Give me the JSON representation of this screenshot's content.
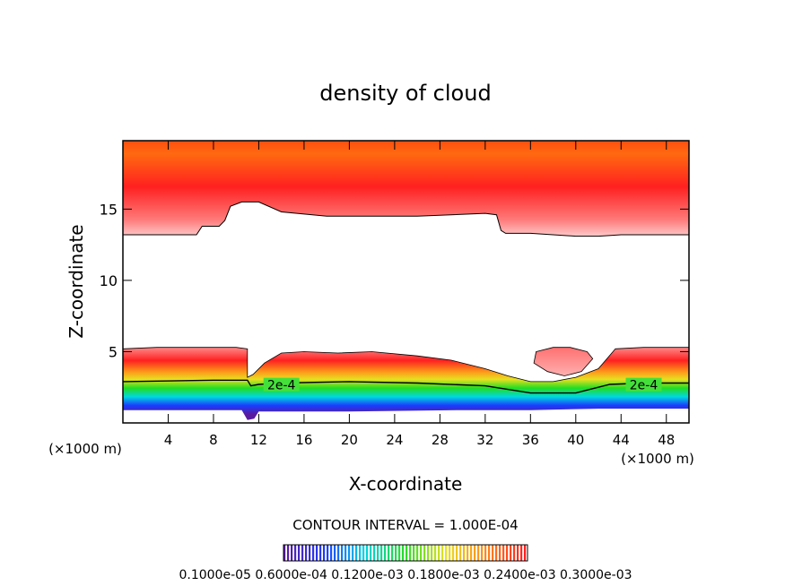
{
  "chart_data": {
    "type": "heatmap",
    "title": "density of cloud",
    "xlabel": "X-coordinate",
    "ylabel": "Z-coordinate",
    "x_unit_left": "(×1000 m)",
    "x_unit_right": "(×1000 m)",
    "xlim": [
      0,
      50
    ],
    "ylim": [
      0,
      19.8
    ],
    "x_ticks": [
      4,
      8,
      12,
      16,
      20,
      24,
      28,
      32,
      36,
      40,
      44,
      48
    ],
    "x_tick_labels": [
      "4",
      "8",
      "12",
      "16",
      "20",
      "24",
      "28",
      "32",
      "36",
      "40",
      "44",
      "48"
    ],
    "y_ticks": [
      5,
      10,
      15
    ],
    "y_tick_labels": [
      "5",
      "10",
      "15"
    ],
    "contour_interval_text": "CONTOUR INTERVAL = 1.000E-04",
    "contour_labels": [
      {
        "text": "2e-4",
        "x": 14.0,
        "z": 2.6
      },
      {
        "text": "2e-4",
        "x": 46.0,
        "z": 2.6
      }
    ],
    "colorbar_labels_text": "0.1000e-05 0.6000e-04 0.1200e-03 0.1800e-03 0.2400e-03 0.3000e-03",
    "colorbar_range": [
      1e-06,
      0.0003
    ],
    "colors": {
      "low": "#5a1aa0",
      "blue": "#1a3cff",
      "cyan": "#00d8e0",
      "green": "#22dd22",
      "yellow": "#e8e020",
      "orange": "#ff8c1a",
      "red": "#ff2020",
      "pink": "#ff8c8c"
    },
    "upper_layer": {
      "description_values": "density increases toward top (~3e-4 near z=19) and decreases to ~1e-6 at lower boundary",
      "lower_boundary": [
        [
          0,
          13.2
        ],
        [
          5,
          13.2
        ],
        [
          6.5,
          13.2
        ],
        [
          7,
          13.8
        ],
        [
          8.5,
          13.8
        ],
        [
          9,
          14.2
        ],
        [
          9.5,
          15.2
        ],
        [
          10.5,
          15.5
        ],
        [
          12,
          15.5
        ],
        [
          14,
          14.8
        ],
        [
          18,
          14.5
        ],
        [
          26,
          14.5
        ],
        [
          32,
          14.7
        ],
        [
          33,
          14.6
        ],
        [
          33.4,
          13.5
        ],
        [
          33.8,
          13.3
        ],
        [
          36,
          13.3
        ],
        [
          40,
          13.1
        ],
        [
          42,
          13.1
        ],
        [
          44,
          13.2
        ],
        [
          50,
          13.2
        ]
      ]
    },
    "lower_layer": {
      "upper_boundary": [
        [
          0,
          5.2
        ],
        [
          3,
          5.3
        ],
        [
          7,
          5.3
        ],
        [
          10,
          5.3
        ],
        [
          11,
          5.2
        ],
        [
          11,
          3.2
        ],
        [
          11.5,
          3.4
        ],
        [
          12.5,
          4.2
        ],
        [
          14,
          4.9
        ],
        [
          16,
          5.0
        ],
        [
          19,
          4.9
        ],
        [
          22,
          5.0
        ],
        [
          26,
          4.7
        ],
        [
          29,
          4.4
        ],
        [
          32,
          3.8
        ],
        [
          34,
          3.3
        ],
        [
          36,
          2.9
        ],
        [
          38,
          2.9
        ],
        [
          40,
          3.2
        ],
        [
          42,
          3.8
        ],
        [
          43.5,
          5.2
        ],
        [
          46,
          5.3
        ],
        [
          50,
          5.3
        ]
      ],
      "contour_2e4": [
        [
          0,
          2.9
        ],
        [
          8,
          3.0
        ],
        [
          11,
          3.0
        ],
        [
          11.3,
          2.6
        ],
        [
          12,
          2.7
        ],
        [
          14,
          2.8
        ],
        [
          20,
          2.9
        ],
        [
          26,
          2.8
        ],
        [
          32,
          2.6
        ],
        [
          36,
          2.1
        ],
        [
          40,
          2.1
        ],
        [
          43,
          2.7
        ],
        [
          46,
          2.8
        ],
        [
          50,
          2.8
        ]
      ],
      "lower_boundary": [
        [
          0,
          0.9
        ],
        [
          10.5,
          0.9
        ],
        [
          11,
          0.2
        ],
        [
          11.6,
          0.3
        ],
        [
          12,
          0.8
        ],
        [
          20,
          0.8
        ],
        [
          30,
          0.9
        ],
        [
          36,
          0.9
        ],
        [
          42,
          1.0
        ],
        [
          50,
          1.0
        ]
      ]
    },
    "isolated_patch": {
      "points": [
        [
          36.5,
          5.0
        ],
        [
          38,
          5.3
        ],
        [
          39.5,
          5.3
        ],
        [
          41,
          5.0
        ],
        [
          41.5,
          4.5
        ],
        [
          40.5,
          3.6
        ],
        [
          39,
          3.3
        ],
        [
          37.5,
          3.6
        ],
        [
          36.3,
          4.2
        ]
      ]
    }
  }
}
